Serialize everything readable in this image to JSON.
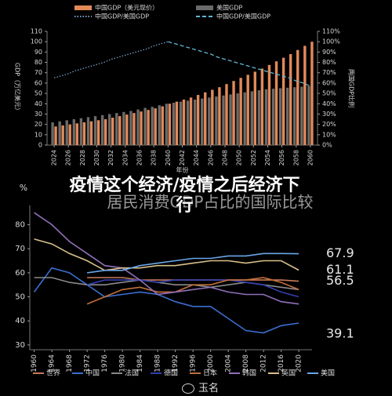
{
  "chart_data": [
    {
      "type": "bar",
      "legend": "top",
      "y_label": "GDP（万亿美元）",
      "y2_label": "两国GDP比例",
      "x_label": "年份",
      "x": [
        2024,
        2025,
        2026,
        2027,
        2028,
        2029,
        2030,
        2031,
        2032,
        2033,
        2034,
        2035,
        2036,
        2037,
        2038,
        2039,
        2040,
        2041,
        2042,
        2043,
        2044,
        2045,
        2046,
        2047,
        2048,
        2049,
        2050,
        2051,
        2052,
        2053,
        2054,
        2055,
        2056,
        2057,
        2058,
        2059,
        2060
      ],
      "xlim": [
        2023,
        2061
      ],
      "xticks": [
        2024,
        2026,
        2028,
        2030,
        2032,
        2034,
        2036,
        2038,
        2040,
        2042,
        2044,
        2046,
        2048,
        2050,
        2052,
        2054,
        2056,
        2058,
        2060
      ],
      "ylim": [
        0,
        110
      ],
      "yticks": [
        0,
        10,
        20,
        30,
        40,
        50,
        60,
        70,
        80,
        90,
        100,
        110
      ],
      "y2lim": [
        0,
        110
      ],
      "y2ticks": [
        {
          "value": 0,
          "label": "0%"
        },
        {
          "value": 10,
          "label": "10%"
        },
        {
          "value": 20,
          "label": "20%"
        },
        {
          "value": 30,
          "label": "30%"
        },
        {
          "value": 40,
          "label": "40%"
        },
        {
          "value": 50,
          "label": "50%"
        },
        {
          "value": 60,
          "label": "60%"
        },
        {
          "value": 70,
          "label": "70%"
        },
        {
          "value": 80,
          "label": "80%"
        },
        {
          "value": 90,
          "label": "90%"
        },
        {
          "value": 100,
          "label": "100%"
        },
        {
          "value": 110,
          "label": "110%"
        }
      ],
      "series": [
        {
          "name": "中国GDP（美元现价）",
          "type": "bar",
          "color": "#e08a5a",
          "values": [
            18,
            19,
            20,
            21,
            22,
            23,
            24,
            25,
            26.5,
            28,
            29.5,
            31,
            32.5,
            34,
            35.5,
            37.5,
            40,
            42,
            44,
            46,
            48.5,
            51,
            53.5,
            56,
            59,
            62,
            65,
            68,
            71,
            74,
            77.5,
            81,
            84.5,
            88,
            92,
            96,
            100
          ]
        },
        {
          "name": "美国GDP",
          "type": "bar",
          "color": "#6a6a6a",
          "values": [
            22,
            23,
            24,
            25,
            26,
            27,
            28,
            29,
            30,
            31,
            32,
            33,
            34.5,
            36,
            37,
            38.5,
            40,
            41,
            42,
            43,
            44,
            45,
            46,
            47,
            48,
            49,
            50,
            51,
            52,
            53,
            54,
            54.5,
            55,
            55.5,
            56,
            56.5,
            57
          ]
        },
        {
          "name": "中国GDP/美国GDP",
          "type": "line",
          "axis": "y2",
          "style": "dotted",
          "color": "#7a9cc0",
          "values": [
            65,
            67,
            69,
            72,
            74,
            76,
            78,
            80,
            83,
            85,
            87,
            89,
            91,
            93,
            96,
            98,
            100,
            null,
            null,
            null,
            null,
            null,
            null,
            null,
            null,
            null,
            null,
            null,
            null,
            null,
            null,
            null,
            null,
            null,
            null,
            null,
            null
          ]
        },
        {
          "name": "中国GDP/美国GDP",
          "type": "line",
          "axis": "y2",
          "style": "dashed",
          "color": "#5fb8d8",
          "values": [
            null,
            null,
            null,
            null,
            null,
            null,
            null,
            null,
            null,
            null,
            null,
            null,
            null,
            null,
            null,
            null,
            100,
            98,
            96,
            94,
            92,
            90,
            88,
            85,
            83,
            81,
            79,
            77,
            75,
            73,
            71,
            69,
            67,
            65,
            62,
            60,
            57
          ]
        }
      ]
    },
    {
      "type": "line",
      "legend": "bottom",
      "title": "居民消费GDP占比的国际比较",
      "y_label": "%",
      "x": [
        1960,
        1964,
        1968,
        1972,
        1976,
        1980,
        1984,
        1988,
        1992,
        1996,
        2000,
        2004,
        2008,
        2012,
        2016,
        2020
      ],
      "xlim": [
        1959,
        2023
      ],
      "xticks": [
        1960,
        1964,
        1968,
        1972,
        1976,
        1980,
        1984,
        1988,
        1992,
        1996,
        2000,
        2004,
        2008,
        2012,
        2016,
        2020
      ],
      "ylim": [
        28,
        88
      ],
      "yticks": [
        30,
        40,
        50,
        60,
        70,
        80
      ],
      "series": [
        {
          "name": "世界",
          "color": "#c87a5a",
          "end_label": true,
          "values": [
            null,
            null,
            null,
            58,
            58,
            58,
            57,
            57,
            57,
            57,
            57,
            57,
            57,
            57,
            57,
            56.5
          ]
        },
        {
          "name": "中国",
          "color": "#3a6fd0",
          "end_label": true,
          "values": [
            52,
            62,
            60,
            55,
            50,
            51,
            52,
            51,
            48,
            46,
            46,
            41,
            36,
            35,
            38,
            39.1
          ]
        },
        {
          "name": "法国",
          "color": "#8a8a8a",
          "values": [
            58,
            58,
            56,
            55,
            55,
            56,
            57,
            56,
            55,
            55,
            54,
            55,
            56,
            55,
            54,
            53
          ]
        },
        {
          "name": "德国",
          "color": "#3040b0",
          "values": [
            null,
            null,
            null,
            55,
            57,
            57,
            57,
            56,
            57,
            57,
            57,
            57,
            56,
            55,
            52,
            50
          ]
        },
        {
          "name": "日本",
          "color": "#c0703a",
          "values": [
            null,
            null,
            null,
            47,
            50,
            53,
            54,
            52,
            52,
            55,
            55,
            57,
            57,
            58,
            56,
            53
          ]
        },
        {
          "name": "韩国",
          "color": "#9070b8",
          "values": [
            85,
            80,
            73,
            68,
            63,
            62,
            57,
            51,
            52,
            53,
            54,
            52,
            51,
            51,
            48,
            47
          ]
        },
        {
          "name": "英国",
          "color": "#d8c08a",
          "end_label": true,
          "values": [
            74,
            72,
            68,
            65,
            61,
            62,
            62,
            63,
            63,
            64,
            65,
            65,
            64,
            65,
            65,
            61.1
          ]
        },
        {
          "name": "美国",
          "color": "#6aa6e8",
          "end_label": true,
          "values": [
            null,
            null,
            null,
            60,
            61,
            61,
            63,
            64,
            65,
            66,
            66,
            67,
            67,
            68,
            68,
            67.9
          ]
        }
      ]
    }
  ],
  "caption": "疫情这个经济/疫情之后经济下行",
  "watermark": "玉名"
}
